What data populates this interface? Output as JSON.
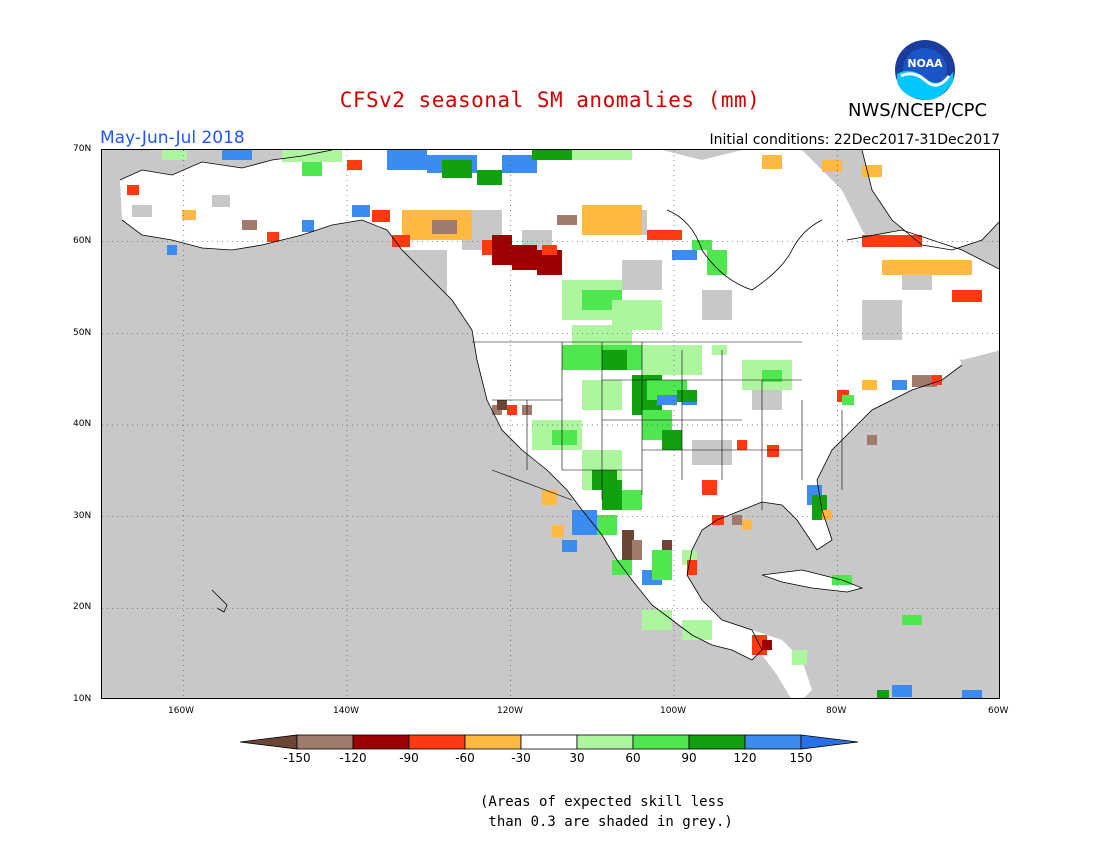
{
  "title": "CFSv2 seasonal SM anomalies (mm)",
  "season": "May-Jun-Jul 2018",
  "initial_conditions": "Initial conditions: 22Dec2017-31Dec2017",
  "agency": "NWS/NCEP/CPC",
  "logo_text": "NOAA",
  "lat_labels": [
    "70N",
    "60N",
    "50N",
    "40N",
    "30N",
    "20N",
    "10N"
  ],
  "lon_labels": [
    "160W",
    "140W",
    "120W",
    "100W",
    "80W",
    "60W"
  ],
  "colorbar": {
    "labels": [
      "-150",
      "-120",
      "-90",
      "-60",
      "-30",
      "30",
      "60",
      "90",
      "120",
      "150"
    ],
    "colors": [
      "#6b4636",
      "#a07a6c",
      "#9c0000",
      "#ff3a10",
      "#ffb840",
      "#ffffff",
      "#aef5a0",
      "#50e650",
      "#10a010",
      "#3c8cf0",
      "#2870e8"
    ]
  },
  "note_line1": "(Areas of expected skill less",
  "note_line2": " than 0.3 are shaded in grey.)",
  "map_colors": {
    "background_grey": "#c8c8c8",
    "neutral_white": "#ffffff"
  }
}
